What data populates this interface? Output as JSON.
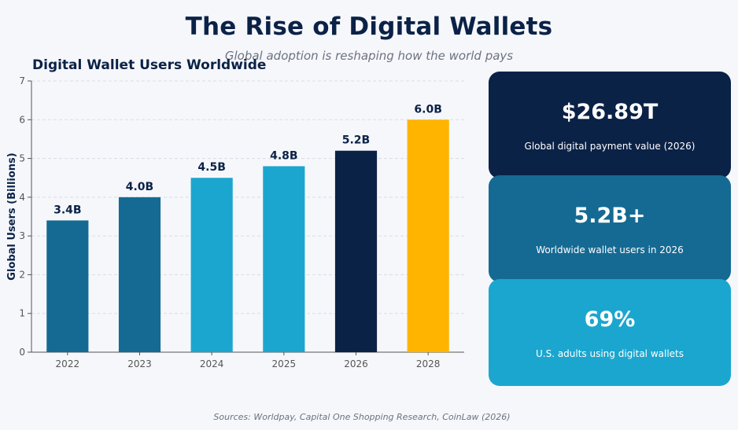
{
  "header": {
    "title": "The Rise of Digital Wallets",
    "subtitle": "Global adoption is reshaping how the world pays"
  },
  "chart_data": {
    "type": "bar",
    "title": "Digital Wallet Users Worldwide",
    "xlabel": "",
    "ylabel": "Global Users (Billions)",
    "categories": [
      "2022",
      "2023",
      "2024",
      "2025",
      "2026",
      "2028"
    ],
    "values": [
      3.4,
      4.0,
      4.5,
      4.8,
      5.2,
      6.0
    ],
    "data_labels": [
      "3.4B",
      "4.0B",
      "4.5B",
      "4.8B",
      "5.2B",
      "6.0B"
    ],
    "bar_colors": [
      "#156a93",
      "#156a93",
      "#1ba6cf",
      "#1ba6cf",
      "#0b2247",
      "#ffb400"
    ],
    "ylim": [
      0,
      7
    ],
    "yticks": [
      0,
      1,
      2,
      3,
      4,
      5,
      6,
      7
    ],
    "grid": true
  },
  "stats": [
    {
      "value": "$26.89T",
      "label": "Global digital payment value (2026)",
      "color": "#0b2247"
    },
    {
      "value": "5.2B+",
      "label": "Worldwide wallet users in 2026",
      "color": "#156a93"
    },
    {
      "value": "69%",
      "label": "U.S. adults using digital wallets",
      "color": "#1ba6cf"
    }
  ],
  "footer": {
    "sources": "Sources: Worldpay, Capital One Shopping Research, CoinLaw (2026)"
  }
}
